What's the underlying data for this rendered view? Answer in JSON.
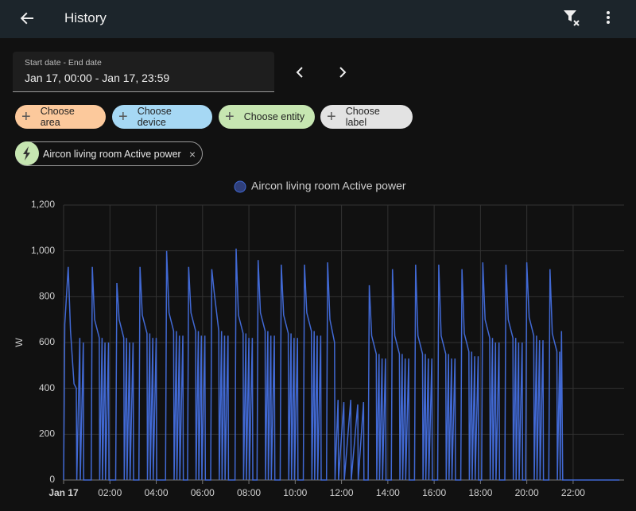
{
  "header": {
    "title": "History"
  },
  "date_range": {
    "label": "Start date - End date",
    "value": "Jan 17, 00:00 - Jan 17, 23:59"
  },
  "chips": [
    "Choose area",
    "Choose device",
    "Choose entity",
    "Choose label"
  ],
  "selected": "Aircon living room Active power",
  "chart_data": {
    "type": "line",
    "y_label": "W",
    "grid": true,
    "xlim": [
      0,
      24.2
    ],
    "xticks": [
      {
        "value": 0,
        "label": "Jan 17"
      },
      {
        "value": 2,
        "label": "02:00"
      },
      {
        "value": 4,
        "label": "04:00"
      },
      {
        "value": 6,
        "label": "06:00"
      },
      {
        "value": 8,
        "label": "08:00"
      },
      {
        "value": 10,
        "label": "10:00"
      },
      {
        "value": 12,
        "label": "12:00"
      },
      {
        "value": 14,
        "label": "14:00"
      },
      {
        "value": 16,
        "label": "16:00"
      },
      {
        "value": 18,
        "label": "18:00"
      },
      {
        "value": 20,
        "label": "20:00"
      },
      {
        "value": 22,
        "label": "22:00"
      }
    ],
    "ylim": [
      0,
      1200
    ],
    "yticks": [
      0,
      200,
      400,
      600,
      800,
      {
        "value": 1000,
        "label": "1,000"
      },
      {
        "value": 1200,
        "label": "1,200"
      }
    ],
    "x": [
      0,
      0.05,
      0.2,
      0.3,
      0.45,
      0.55,
      0.57,
      0.7,
      0.72,
      0.85,
      0.87,
      1.19,
      1.24,
      1.34,
      1.54,
      1.56,
      1.66,
      1.68,
      1.79,
      1.81,
      1.94,
      1.96,
      2.25,
      2.3,
      2.4,
      2.6,
      2.62,
      2.72,
      2.74,
      2.85,
      2.87,
      3.0,
      3.02,
      3.25,
      3.3,
      3.4,
      3.6,
      3.62,
      3.72,
      3.74,
      3.85,
      3.87,
      4.0,
      4.02,
      4.4,
      4.45,
      4.55,
      4.75,
      4.77,
      4.87,
      4.89,
      5.0,
      5.02,
      5.15,
      5.17,
      5.35,
      5.4,
      5.5,
      5.7,
      5.72,
      5.82,
      5.84,
      5.95,
      5.97,
      6.1,
      6.12,
      6.35,
      6.4,
      6.5,
      6.7,
      6.72,
      6.82,
      6.84,
      6.95,
      6.97,
      7.1,
      7.12,
      7.4,
      7.45,
      7.55,
      7.75,
      7.77,
      7.87,
      7.89,
      8.0,
      8.02,
      8.15,
      8.17,
      8.35,
      8.4,
      8.5,
      8.7,
      8.72,
      8.82,
      8.84,
      8.95,
      8.97,
      9.1,
      9.12,
      9.35,
      9.4,
      9.5,
      9.7,
      9.72,
      9.82,
      9.84,
      9.95,
      9.97,
      10.1,
      10.12,
      10.35,
      10.4,
      10.5,
      10.7,
      10.72,
      10.82,
      10.84,
      10.95,
      10.97,
      11.1,
      11.12,
      11.35,
      11.4,
      11.5,
      11.7,
      11.72,
      11.85,
      11.87,
      12.1,
      12.12,
      12.4,
      12.42,
      12.7,
      12.72,
      12.95,
      12.97,
      13.15,
      13.2,
      13.3,
      13.5,
      13.52,
      13.62,
      13.64,
      13.75,
      13.77,
      13.9,
      13.92,
      14.15,
      14.2,
      14.3,
      14.5,
      14.52,
      14.62,
      14.64,
      14.75,
      14.77,
      14.9,
      14.92,
      15.15,
      15.2,
      15.3,
      15.5,
      15.52,
      15.62,
      15.64,
      15.75,
      15.77,
      15.9,
      15.92,
      16.15,
      16.2,
      16.3,
      16.5,
      16.52,
      16.62,
      16.64,
      16.75,
      16.77,
      16.9,
      16.92,
      17.15,
      17.2,
      17.3,
      17.5,
      17.52,
      17.62,
      17.64,
      17.75,
      17.77,
      17.9,
      17.92,
      18.05,
      18.1,
      18.2,
      18.4,
      18.42,
      18.52,
      18.54,
      18.65,
      18.67,
      18.8,
      18.82,
      19.05,
      19.1,
      19.2,
      19.4,
      19.42,
      19.52,
      19.54,
      19.65,
      19.67,
      19.8,
      19.82,
      19.95,
      20.0,
      20.1,
      20.3,
      20.32,
      20.42,
      20.44,
      20.55,
      20.57,
      20.7,
      20.72,
      20.95,
      21.0,
      21.1,
      21.3,
      21.32,
      21.42,
      21.44,
      21.5,
      21.55,
      24
    ],
    "series": [
      {
        "name": "Aircon living room Active power",
        "color": "#4169d4",
        "values": [
          0,
          680,
          930,
          650,
          420,
          400,
          0,
          620,
          0,
          600,
          0,
          0,
          930,
          700,
          620,
          0,
          620,
          0,
          600,
          0,
          600,
          0,
          0,
          860,
          700,
          620,
          0,
          620,
          0,
          600,
          0,
          600,
          0,
          0,
          930,
          720,
          640,
          0,
          640,
          0,
          620,
          0,
          620,
          0,
          0,
          1000,
          730,
          650,
          0,
          650,
          0,
          630,
          0,
          630,
          0,
          0,
          930,
          730,
          650,
          0,
          650,
          0,
          630,
          0,
          630,
          0,
          0,
          920,
          820,
          650,
          0,
          650,
          0,
          630,
          0,
          630,
          0,
          0,
          1010,
          720,
          640,
          0,
          640,
          0,
          620,
          0,
          620,
          0,
          0,
          960,
          730,
          650,
          0,
          650,
          0,
          630,
          0,
          630,
          0,
          0,
          940,
          720,
          640,
          0,
          640,
          0,
          620,
          0,
          620,
          0,
          0,
          940,
          730,
          650,
          0,
          650,
          0,
          630,
          0,
          630,
          0,
          0,
          950,
          700,
          600,
          0,
          350,
          0,
          340,
          0,
          350,
          0,
          330,
          0,
          340,
          0,
          0,
          850,
          630,
          550,
          0,
          550,
          0,
          530,
          0,
          530,
          0,
          0,
          920,
          630,
          550,
          0,
          550,
          0,
          530,
          0,
          530,
          0,
          0,
          940,
          630,
          550,
          0,
          550,
          0,
          530,
          0,
          530,
          0,
          0,
          940,
          630,
          550,
          0,
          550,
          0,
          530,
          0,
          530,
          0,
          0,
          920,
          640,
          560,
          0,
          560,
          0,
          540,
          0,
          540,
          0,
          0,
          950,
          700,
          620,
          0,
          620,
          0,
          600,
          0,
          600,
          0,
          0,
          940,
          700,
          620,
          0,
          620,
          0,
          600,
          0,
          600,
          0,
          0,
          950,
          710,
          630,
          0,
          630,
          0,
          610,
          0,
          610,
          0,
          0,
          920,
          640,
          560,
          0,
          560,
          0,
          650,
          0,
          0
        ]
      }
    ]
  }
}
